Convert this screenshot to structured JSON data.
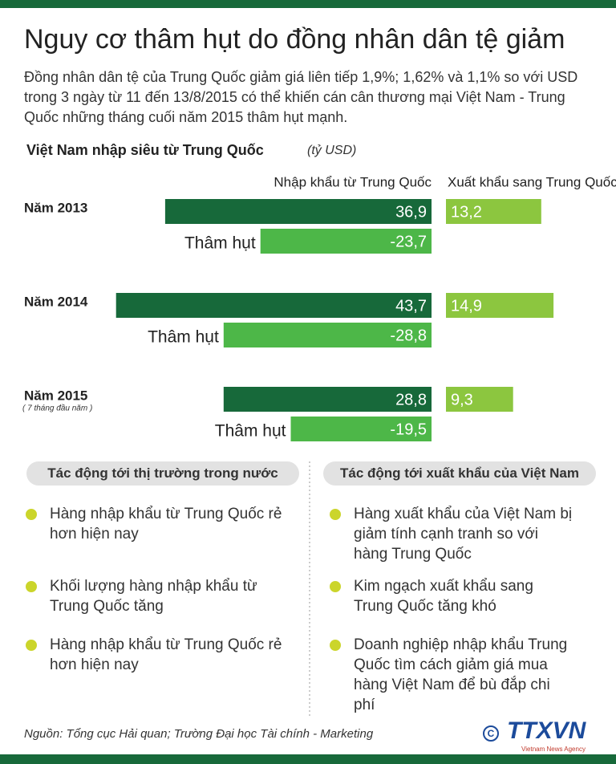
{
  "header": {
    "title": "Nguy cơ thâm hụt do đồng nhân dân tệ giảm",
    "subtitle": "Đồng nhân dân tệ của Trung Quốc giảm giá liên tiếp 1,9%; 1,62% và 1,1% so với USD trong 3 ngày từ 11 đến 13/8/2015 có thể khiến cán cân thương mại Việt Nam - Trung Quốc những tháng cuối năm 2015 thâm hụt mạnh."
  },
  "chart_data": {
    "type": "bar",
    "title": "Việt Nam nhập siêu từ Trung Quốc",
    "unit": "(tỷ USD)",
    "categories": [
      "Năm 2013",
      "Năm 2014",
      "Năm 2015"
    ],
    "footnote": "( 7 tháng đầu năm )",
    "series": [
      {
        "name": "Nhập khẩu từ Trung Quốc",
        "color": "#17693a",
        "values": [
          36.9,
          43.7,
          28.8
        ],
        "value_labels": [
          "36,9",
          "43,7",
          "28,8"
        ]
      },
      {
        "name": "Xuất khẩu sang Trung Quốc",
        "color": "#8cc63f",
        "values": [
          13.2,
          14.9,
          9.3
        ],
        "value_labels": [
          "13,2",
          "14,9",
          "9,3"
        ]
      },
      {
        "name": "Thâm hụt",
        "color": "#4db748",
        "values": [
          -23.7,
          -28.8,
          -19.5
        ],
        "value_labels": [
          "-23,7",
          "-28,8",
          "-19,5"
        ]
      }
    ]
  },
  "panels": [
    {
      "title": "Tác động tới thị trường trong nước",
      "items": [
        "Hàng nhập khẩu từ Trung Quốc rẻ hơn hiện nay",
        "Khối lượng hàng nhập khẩu từ Trung Quốc tăng",
        "Hàng nhập khẩu từ Trung Quốc rẻ hơn hiện nay"
      ]
    },
    {
      "title": "Tác động tới xuất khẩu của Việt Nam",
      "items": [
        "Hàng xuất khẩu của Việt Nam bị giảm tính cạnh tranh so với hàng Trung Quốc",
        "Kim ngạch xuất khẩu sang Trung Quốc tăng khó",
        "Doanh nghiệp nhập khẩu Trung Quốc tìm cách giảm giá mua hàng Việt Nam để bù đắp chi phí"
      ]
    }
  ],
  "source": "Nguồn: Tổng cục Hải quan; Trường Đại học Tài chính - Marketing",
  "logo": {
    "name": "TTXVN",
    "sub": "Vietnam News Agency"
  }
}
